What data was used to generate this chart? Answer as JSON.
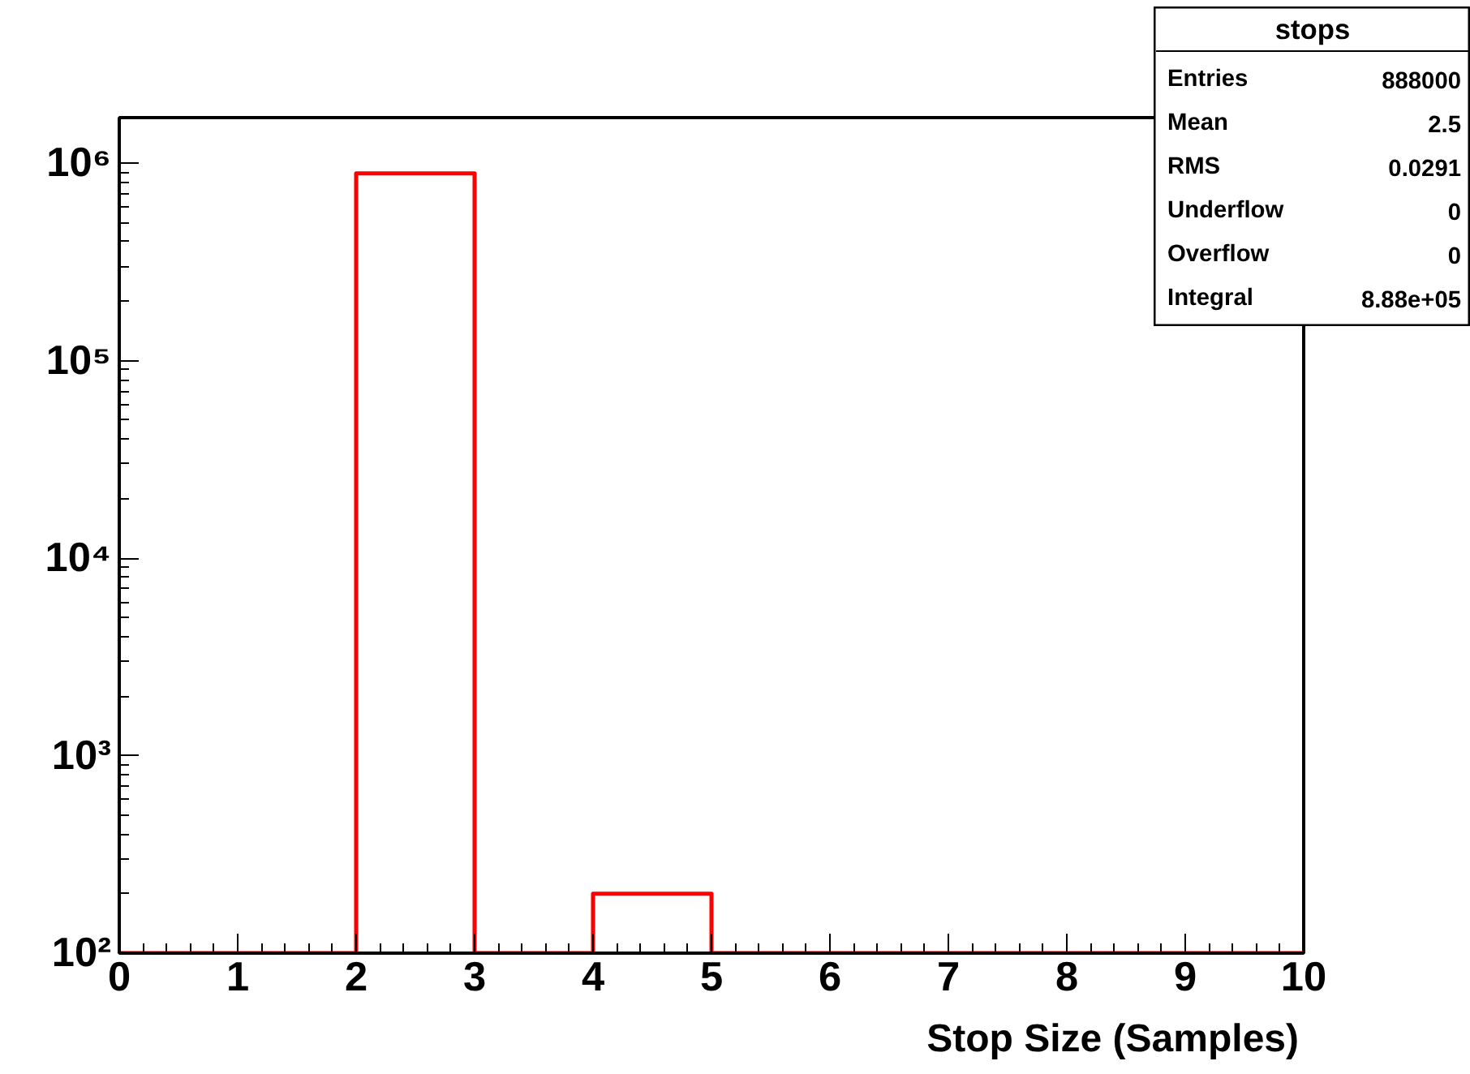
{
  "chart_data": {
    "type": "histogram",
    "xlabel": "Stop Size (Samples)",
    "bins": [
      0,
      1,
      2,
      3,
      4,
      5,
      6,
      7,
      8,
      9,
      10
    ],
    "values": [
      null,
      null,
      887800,
      null,
      200,
      null,
      null,
      null,
      null,
      null
    ],
    "color": "#ff0000",
    "log": "y",
    "grid": false,
    "xlim": [
      0,
      10
    ],
    "xticks": [
      0,
      1,
      2,
      3,
      4,
      5,
      6,
      7,
      8,
      9,
      10
    ],
    "ylim": [
      100,
      1700000
    ],
    "yticks": [
      {
        "value": 100,
        "label": "10²"
      },
      {
        "value": 1000,
        "label": "10³"
      },
      {
        "value": 10000,
        "label": "10⁴"
      },
      {
        "value": 100000,
        "label": "10⁵"
      },
      {
        "value": 1000000,
        "label": "10⁶"
      }
    ],
    "annotations": [
      "stops",
      "Entries",
      "888000",
      "Mean",
      "2.5",
      "RMS",
      "0.0291",
      "Underflow",
      "0",
      "Overflow",
      "0",
      "Integral",
      "8.88e+05"
    ]
  }
}
